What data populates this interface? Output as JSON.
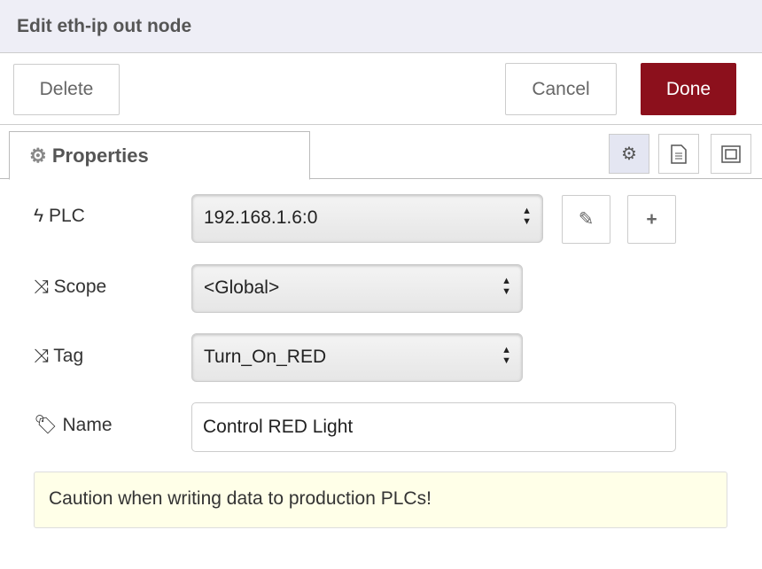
{
  "title": "Edit eth-ip out node",
  "toolbar": {
    "delete": "Delete",
    "cancel": "Cancel",
    "done": "Done",
    "done_color": "#8c101c"
  },
  "tabs": {
    "properties": "Properties"
  },
  "form": {
    "plc": {
      "label": "PLC",
      "value": "192.168.1.6:0",
      "icon": "bolt-icon"
    },
    "scope": {
      "label": "Scope",
      "value": "<Global>",
      "icon": "random-icon"
    },
    "tag": {
      "label": "Tag",
      "value": "Turn_On_RED",
      "icon": "random-icon"
    },
    "name": {
      "label": "Name",
      "value": "Control RED Light",
      "icon": "tag-icon"
    }
  },
  "tip": "Caution when writing data to production PLCs!"
}
